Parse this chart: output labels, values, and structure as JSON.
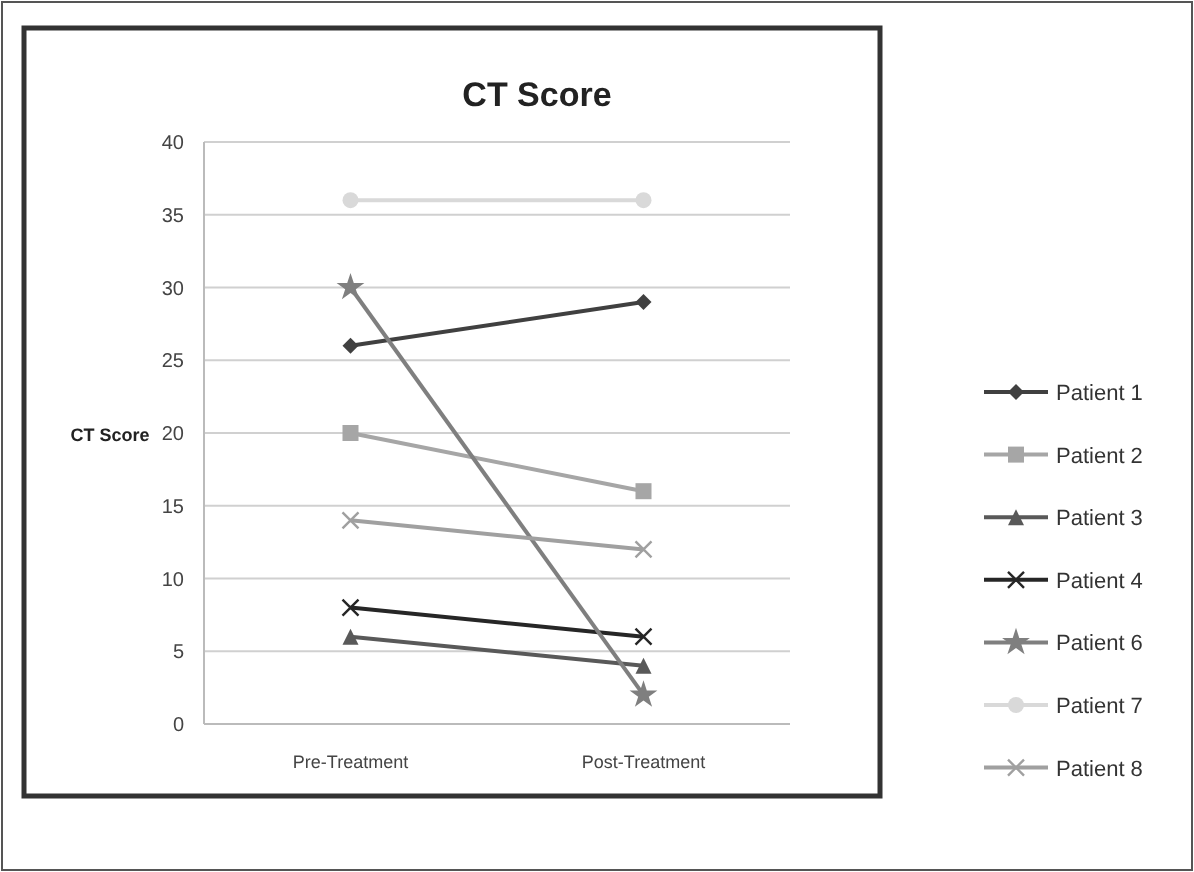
{
  "chart_data": {
    "type": "line",
    "title": "CT Score",
    "ylabel": "CT Score",
    "categories": [
      "Pre-Treatment",
      "Post-Treatment"
    ],
    "ylim": [
      0,
      40
    ],
    "yticks": [
      0,
      5,
      10,
      15,
      20,
      25,
      30,
      35,
      40
    ],
    "grid": "y",
    "legend": "right",
    "series": [
      {
        "name": "Patient 1",
        "color": "#404040",
        "marker": "diamond",
        "values": [
          26,
          29
        ]
      },
      {
        "name": "Patient 2",
        "color": "#a6a6a6",
        "marker": "square",
        "values": [
          20,
          16
        ]
      },
      {
        "name": "Patient 3",
        "color": "#595959",
        "marker": "triangle",
        "values": [
          6,
          4
        ]
      },
      {
        "name": "Patient 4",
        "color": "#262626",
        "marker": "cross",
        "values": [
          8,
          6
        ]
      },
      {
        "name": "Patient 6",
        "color": "#7f7f7f",
        "marker": "star",
        "values": [
          30,
          2
        ]
      },
      {
        "name": "Patient 7",
        "color": "#d9d9d9",
        "marker": "circle",
        "values": [
          36,
          36
        ]
      },
      {
        "name": "Patient 8",
        "color": "#a0a0a0",
        "marker": "cross",
        "values": [
          14,
          12
        ]
      }
    ]
  }
}
